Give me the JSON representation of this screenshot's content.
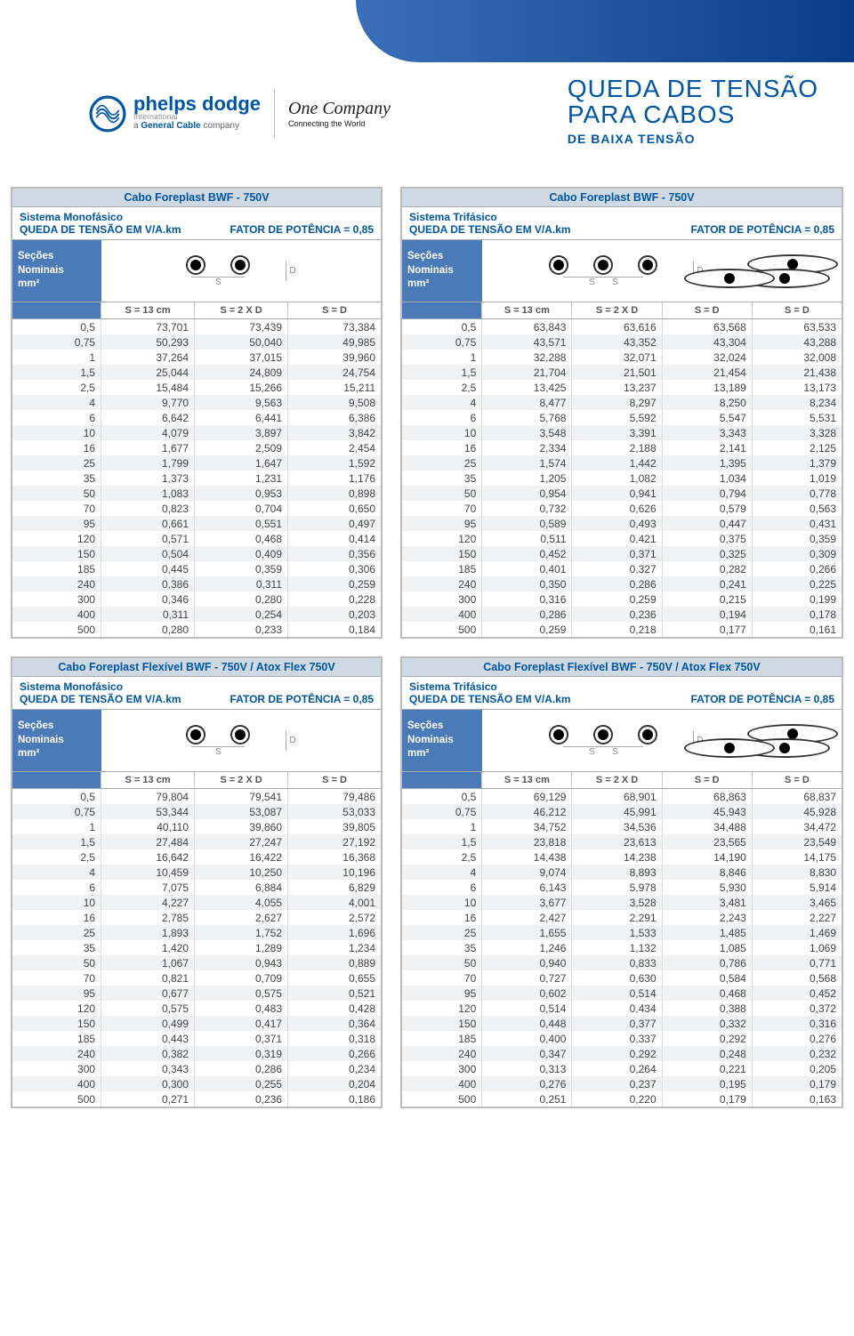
{
  "page_title_line1": "QUEDA DE TENSÃO",
  "page_title_line2": "PARA CABOS",
  "page_title_sub": "DE BAIXA TENSÃO",
  "logo": {
    "brand": "phelps dodge",
    "tag": "International",
    "gc": "a General Cable company",
    "oc": "One Company",
    "oc_sub": "Connecting the World"
  },
  "common": {
    "sec_hdr_l1": "Seções",
    "sec_hdr_l2": "Nominais",
    "sec_hdr_l3": "mm²",
    "s_13": "S = 13 cm",
    "s_2xd": "S = 2 X D",
    "s_d": "S = D",
    "queda": "QUEDA DE TENSÃO EM V/A.km",
    "fator": "FATOR DE POTÊNCIA = 0,85",
    "sys_mono": "Sistema Monofásico",
    "sys_tri": "Sistema Trifásico"
  },
  "tables": [
    {
      "id": "t1",
      "title": "Cabo Foreplast BWF - 750V",
      "system": "mono",
      "cols": 4,
      "sections": [
        "0,5",
        "0,75",
        "1",
        "1,5",
        "2,5",
        "4",
        "6",
        "10",
        "16",
        "25",
        "35",
        "50",
        "70",
        "95",
        "120",
        "150",
        "185",
        "240",
        "300",
        "400",
        "500"
      ],
      "rows": [
        [
          "73,701",
          "73,439",
          "73,384"
        ],
        [
          "50,293",
          "50,040",
          "49,985"
        ],
        [
          "37,264",
          "37,015",
          "39,960"
        ],
        [
          "25,044",
          "24,809",
          "24,754"
        ],
        [
          "15,484",
          "15,266",
          "15,211"
        ],
        [
          "9,770",
          "9,563",
          "9,508"
        ],
        [
          "6,642",
          "6,441",
          "6,386"
        ],
        [
          "4,079",
          "3,897",
          "3,842"
        ],
        [
          "1,677",
          "2,509",
          "2,454"
        ],
        [
          "1,799",
          "1,647",
          "1,592"
        ],
        [
          "1,373",
          "1,231",
          "1,176"
        ],
        [
          "1,083",
          "0,953",
          "0,898"
        ],
        [
          "0,823",
          "0,704",
          "0,650"
        ],
        [
          "0,661",
          "0,551",
          "0,497"
        ],
        [
          "0,571",
          "0,468",
          "0,414"
        ],
        [
          "0,504",
          "0,409",
          "0,356"
        ],
        [
          "0,445",
          "0,359",
          "0,306"
        ],
        [
          "0,386",
          "0,311",
          "0,259"
        ],
        [
          "0,346",
          "0,280",
          "0,228"
        ],
        [
          "0,311",
          "0,254",
          "0,203"
        ],
        [
          "0,280",
          "0,233",
          "0,184"
        ]
      ]
    },
    {
      "id": "t2",
      "title": "Cabo Foreplast BWF - 750V",
      "system": "tri",
      "cols": 5,
      "sections": [
        "0,5",
        "0,75",
        "1",
        "1,5",
        "2,5",
        "4",
        "6",
        "10",
        "16",
        "25",
        "35",
        "50",
        "70",
        "95",
        "120",
        "150",
        "185",
        "240",
        "300",
        "400",
        "500"
      ],
      "rows": [
        [
          "63,843",
          "63,616",
          "63,568",
          "63,533"
        ],
        [
          "43,571",
          "43,352",
          "43,304",
          "43,288"
        ],
        [
          "32,288",
          "32,071",
          "32,024",
          "32,008"
        ],
        [
          "21,704",
          "21,501",
          "21,454",
          "21,438"
        ],
        [
          "13,425",
          "13,237",
          "13,189",
          "13,173"
        ],
        [
          "8,477",
          "8,297",
          "8,250",
          "8,234"
        ],
        [
          "5,768",
          "5,592",
          "5,547",
          "5,531"
        ],
        [
          "3,548",
          "3,391",
          "3,343",
          "3,328"
        ],
        [
          "2,334",
          "2,188",
          "2,141",
          "2,125"
        ],
        [
          "1,574",
          "1,442",
          "1,395",
          "1,379"
        ],
        [
          "1,205",
          "1,082",
          "1,034",
          "1,019"
        ],
        [
          "0,954",
          "0,941",
          "0,794",
          "0,778"
        ],
        [
          "0,732",
          "0,626",
          "0,579",
          "0,563"
        ],
        [
          "0,589",
          "0,493",
          "0,447",
          "0,431"
        ],
        [
          "0,511",
          "0,421",
          "0,375",
          "0,359"
        ],
        [
          "0,452",
          "0,371",
          "0,325",
          "0,309"
        ],
        [
          "0,401",
          "0,327",
          "0,282",
          "0,266"
        ],
        [
          "0,350",
          "0,286",
          "0,241",
          "0,225"
        ],
        [
          "0,316",
          "0,259",
          "0,215",
          "0,199"
        ],
        [
          "0,286",
          "0,236",
          "0,194",
          "0,178"
        ],
        [
          "0,259",
          "0,218",
          "0,177",
          "0,161"
        ]
      ]
    },
    {
      "id": "t3",
      "title": "Cabo Foreplast  Flexível BWF - 750V / Atox Flex 750V",
      "system": "mono",
      "cols": 4,
      "sections": [
        "0,5",
        "0,75",
        "1",
        "1,5",
        "2,5",
        "4",
        "6",
        "10",
        "16",
        "25",
        "35",
        "50",
        "70",
        "95",
        "120",
        "150",
        "185",
        "240",
        "300",
        "400",
        "500"
      ],
      "rows": [
        [
          "79,804",
          "79,541",
          "79,486"
        ],
        [
          "53,344",
          "53,087",
          "53,033"
        ],
        [
          "40,110",
          "39,860",
          "39,805"
        ],
        [
          "27,484",
          "27,247",
          "27,192"
        ],
        [
          "16,642",
          "16,422",
          "16,368"
        ],
        [
          "10,459",
          "10,250",
          "10,196"
        ],
        [
          "7,075",
          "6,884",
          "6,829"
        ],
        [
          "4,227",
          "4,055",
          "4,001"
        ],
        [
          "2,785",
          "2,627",
          "2,572"
        ],
        [
          "1,893",
          "1,752",
          "1,696"
        ],
        [
          "1,420",
          "1,289",
          "1,234"
        ],
        [
          "1,067",
          "0,943",
          "0,889"
        ],
        [
          "0,821",
          "0,709",
          "0,655"
        ],
        [
          "0,677",
          "0,575",
          "0,521"
        ],
        [
          "0,575",
          "0,483",
          "0,428"
        ],
        [
          "0,499",
          "0,417",
          "0,364"
        ],
        [
          "0,443",
          "0,371",
          "0,318"
        ],
        [
          "0,382",
          "0,319",
          "0,266"
        ],
        [
          "0,343",
          "0,286",
          "0,234"
        ],
        [
          "0,300",
          "0,255",
          "0,204"
        ],
        [
          "0,271",
          "0,236",
          "0,186"
        ]
      ]
    },
    {
      "id": "t4",
      "title": "Cabo Foreplast Flexível BWF - 750V / Atox Flex 750V",
      "system": "tri",
      "cols": 5,
      "sections": [
        "0,5",
        "0,75",
        "1",
        "1,5",
        "2,5",
        "4",
        "6",
        "10",
        "16",
        "25",
        "35",
        "50",
        "70",
        "95",
        "120",
        "150",
        "185",
        "240",
        "300",
        "400",
        "500"
      ],
      "rows": [
        [
          "69,129",
          "68,901",
          "68,863",
          "68,837"
        ],
        [
          "46,212",
          "45,991",
          "45,943",
          "45,928"
        ],
        [
          "34,752",
          "34,536",
          "34,488",
          "34,472"
        ],
        [
          "23,818",
          "23,613",
          "23,565",
          "23,549"
        ],
        [
          "14,438",
          "14,238",
          "14,190",
          "14,175"
        ],
        [
          "9,074",
          "8,893",
          "8,846",
          "8,830"
        ],
        [
          "6,143",
          "5,978",
          "5,930",
          "5,914"
        ],
        [
          "3,677",
          "3,528",
          "3,481",
          "3,465"
        ],
        [
          "2,427",
          "2,291",
          "2,243",
          "2,227"
        ],
        [
          "1,655",
          "1,533",
          "1,485",
          "1,469"
        ],
        [
          "1,246",
          "1,132",
          "1,085",
          "1,069"
        ],
        [
          "0,940",
          "0,833",
          "0,786",
          "0,771"
        ],
        [
          "0,727",
          "0,630",
          "0,584",
          "0,568"
        ],
        [
          "0,602",
          "0,514",
          "0,468",
          "0,452"
        ],
        [
          "0,514",
          "0,434",
          "0,388",
          "0,372"
        ],
        [
          "0,448",
          "0,377",
          "0,332",
          "0,316"
        ],
        [
          "0,400",
          "0,337",
          "0,292",
          "0,276"
        ],
        [
          "0,347",
          "0,292",
          "0,248",
          "0,232"
        ],
        [
          "0,313",
          "0,264",
          "0,221",
          "0,205"
        ],
        [
          "0,276",
          "0,237",
          "0,195",
          "0,179"
        ],
        [
          "0,251",
          "0,220",
          "0,179",
          "0,163"
        ]
      ]
    }
  ],
  "colors": {
    "header_blue": "#4a7ab8",
    "title_blue": "#0056a4",
    "band_bg": "#cfd9e4",
    "row_alt": "#f0f2f4",
    "border": "#bbb"
  }
}
